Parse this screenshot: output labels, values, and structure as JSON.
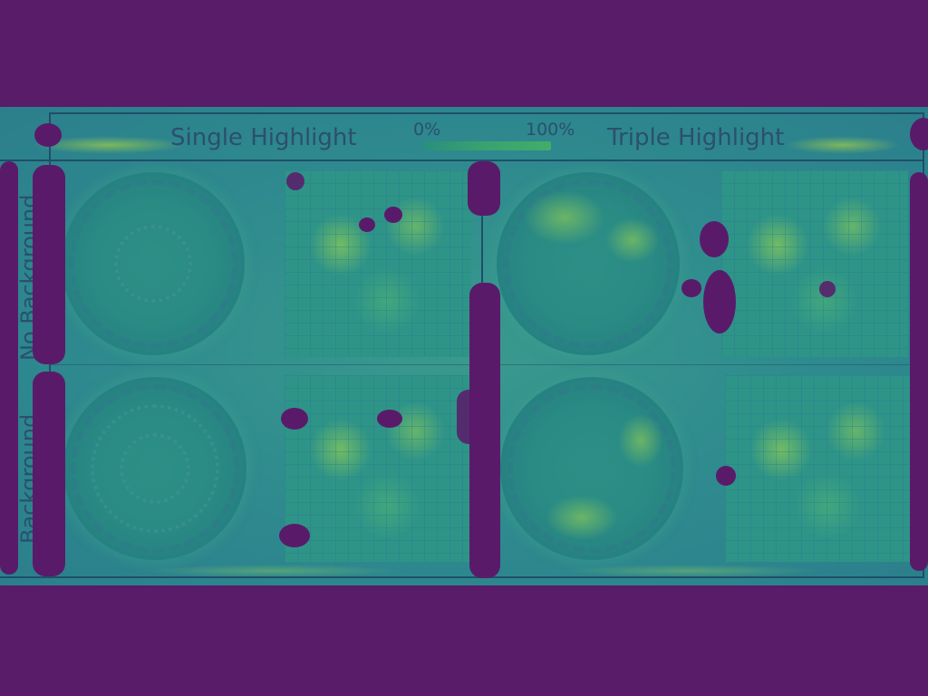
{
  "header": {
    "left_title": "Single Highlight",
    "right_title": "Triple Highlight",
    "scale_min": "0%",
    "scale_max": "100%"
  },
  "rows": {
    "top_label": "No Background",
    "bottom_label": "Background"
  },
  "colors": {
    "background": "#581c68",
    "heat_mid": "#2e8a8e",
    "heat_high": "#bee13c",
    "text": "#2c4f6f"
  }
}
